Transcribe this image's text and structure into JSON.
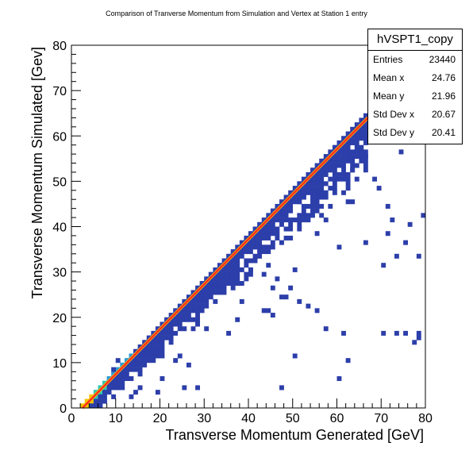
{
  "chart_data": {
    "type": "heatmap",
    "title": "Comparison of Tranverse Momentum from Simulation and Vertex at Station 1 entry",
    "xlabel": "Transverse Momentum Generated [GeV]",
    "ylabel": "Transverse Momentum Simulated [Gev]",
    "xlim": [
      0,
      80
    ],
    "ylim": [
      0,
      80
    ],
    "x_ticks": [
      "0",
      "10",
      "20",
      "30",
      "40",
      "50",
      "60",
      "70",
      "80"
    ],
    "y_ticks": [
      "0",
      "10",
      "20",
      "30",
      "40",
      "50",
      "60",
      "70",
      "80"
    ],
    "bins": 80,
    "colors": {
      "low": "#2c3ea9",
      "medium": "#2a9bd6",
      "mid_high": "#30c6b0",
      "high": "#f5c400",
      "fit_line": "#ff2222",
      "fit_glow": "#ffaa00"
    },
    "fit_line": {
      "x": [
        2.5,
        67
      ],
      "y": [
        0,
        64
      ]
    },
    "band_description": "dense diagonal band from y≈x-2 to y≈x-10, saturating near low momentum",
    "scattered_cells": [
      [
        79,
        42
      ],
      [
        72,
        41
      ],
      [
        76,
        40
      ],
      [
        68,
        50
      ],
      [
        69,
        48
      ],
      [
        71,
        44
      ],
      [
        75,
        36
      ],
      [
        70,
        31
      ],
      [
        60,
        35
      ],
      [
        55,
        38
      ],
      [
        57,
        41
      ],
      [
        62,
        45
      ],
      [
        64,
        50
      ],
      [
        74,
        56
      ],
      [
        77,
        60
      ],
      [
        78,
        59
      ],
      [
        66,
        55
      ],
      [
        60,
        50
      ],
      [
        58,
        52
      ],
      [
        62,
        48
      ],
      [
        61,
        47
      ],
      [
        63,
        52
      ],
      [
        52,
        46
      ],
      [
        54,
        44
      ],
      [
        49,
        37
      ],
      [
        50,
        30
      ],
      [
        46,
        28
      ],
      [
        40,
        30
      ],
      [
        43,
        29
      ],
      [
        44,
        31
      ],
      [
        45,
        26
      ],
      [
        47,
        24
      ],
      [
        44,
        21
      ],
      [
        45,
        20
      ],
      [
        48,
        24
      ],
      [
        49,
        26
      ],
      [
        51,
        23
      ],
      [
        53,
        22
      ],
      [
        57,
        17
      ],
      [
        62,
        10
      ],
      [
        60,
        6
      ],
      [
        61,
        16
      ],
      [
        55,
        21
      ],
      [
        50,
        11
      ],
      [
        47,
        4
      ],
      [
        43,
        21
      ],
      [
        38,
        23
      ],
      [
        37,
        19
      ],
      [
        35,
        16
      ],
      [
        30,
        17
      ],
      [
        27,
        17
      ],
      [
        28,
        18
      ],
      [
        24,
        11
      ],
      [
        23,
        10
      ],
      [
        26,
        9
      ],
      [
        28,
        4
      ],
      [
        25,
        4
      ],
      [
        20,
        6
      ],
      [
        16,
        10
      ],
      [
        15,
        4
      ],
      [
        19,
        3
      ],
      [
        13,
        2
      ],
      [
        14,
        3
      ],
      [
        10,
        4
      ],
      [
        8,
        5
      ],
      [
        9,
        8
      ],
      [
        10,
        10
      ],
      [
        58,
        44
      ],
      [
        66,
        36
      ],
      [
        73,
        33
      ],
      [
        78,
        33
      ],
      [
        70,
        16
      ],
      [
        73,
        16
      ],
      [
        75,
        16
      ],
      [
        78,
        16
      ],
      [
        78,
        15
      ],
      [
        77,
        14
      ],
      [
        63,
        45
      ],
      [
        56,
        42
      ],
      [
        53,
        48
      ],
      [
        51,
        45
      ],
      [
        48,
        45
      ],
      [
        65,
        56
      ],
      [
        71,
        38
      ]
    ]
  },
  "stats": {
    "name": "hVSPT1_copy",
    "rows": [
      {
        "key": "Entries",
        "value": "23440"
      },
      {
        "key": "Mean x",
        "value": "24.76"
      },
      {
        "key": "Mean y",
        "value": "21.96"
      },
      {
        "key": "Std Dev x",
        "value": "20.67"
      },
      {
        "key": "Std Dev y",
        "value": "20.41"
      }
    ]
  }
}
